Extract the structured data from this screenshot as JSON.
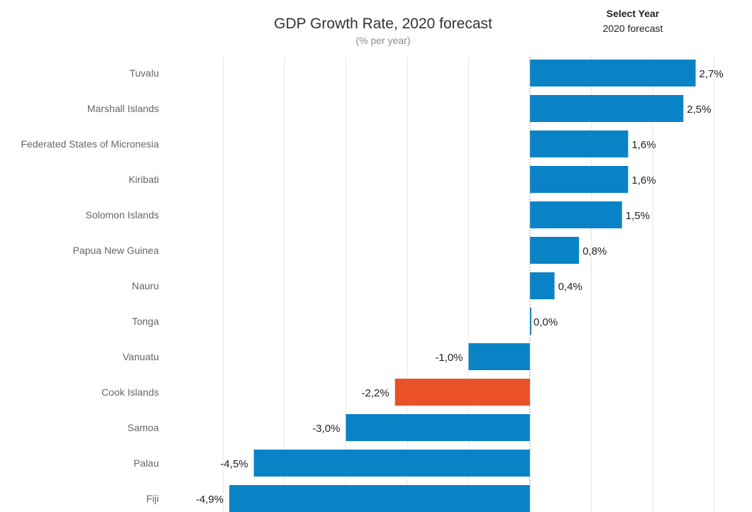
{
  "header": {
    "title": "GDP Growth Rate, 2020 forecast",
    "subtitle": "(% per year)"
  },
  "year_selector": {
    "label": "Select Year",
    "value": "2020 forecast"
  },
  "colors": {
    "bar": "#0a83c6",
    "highlight": "#ea5128",
    "grid": "#e6e6e6",
    "zero_line": "#9a9a9a",
    "category_text": "#666666",
    "value_text": "#222222"
  },
  "chart_data": {
    "type": "bar",
    "orientation": "horizontal",
    "categories": [
      "Tuvalu",
      "Marshall Islands",
      "Federated States of Micronesia",
      "Kiribati",
      "Solomon Islands",
      "Papua New Guinea",
      "Nauru",
      "Tonga",
      "Vanuatu",
      "Cook Islands",
      "Samoa",
      "Palau",
      "Fiji"
    ],
    "values": [
      2.7,
      2.5,
      1.6,
      1.6,
      1.5,
      0.8,
      0.4,
      0.0,
      -1.0,
      -2.2,
      -3.0,
      -4.5,
      -4.9
    ],
    "labels": [
      "2,7%",
      "2,5%",
      "1,6%",
      "1,6%",
      "1,5%",
      "0,8%",
      "0,4%",
      "0,0%",
      "-1,0%",
      "-2,2%",
      "-3,0%",
      "-4,5%",
      "-4,9%"
    ],
    "highlight": "Cook Islands",
    "unit": "% per year",
    "xlim": [
      -5,
      3
    ],
    "grid": true,
    "zero_line": "dashed"
  }
}
